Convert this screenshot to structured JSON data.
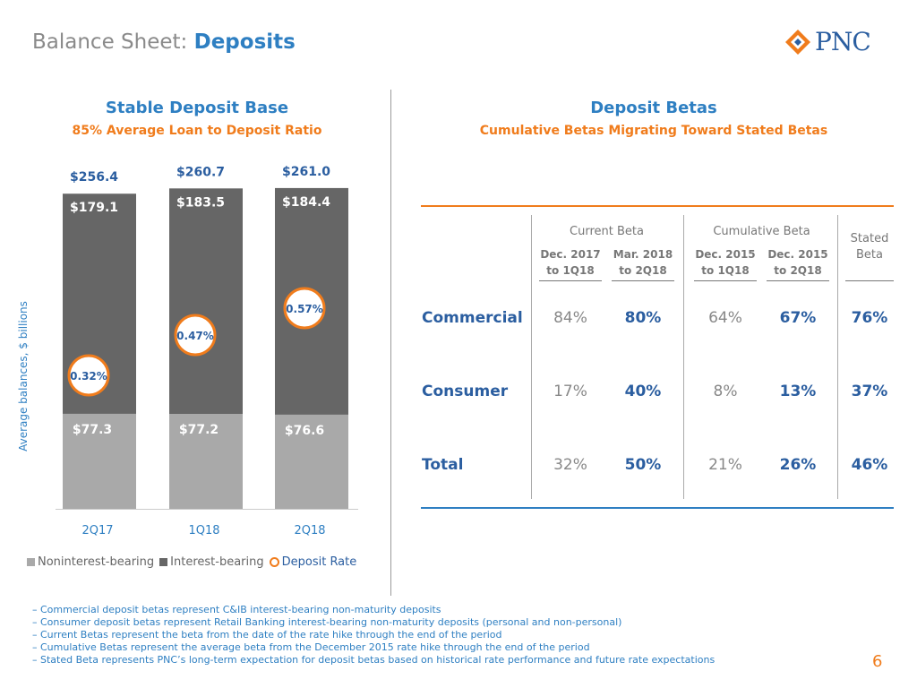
{
  "header": {
    "title_prefix": "Balance Sheet:",
    "title_main": "Deposits",
    "logo_text": "PNC"
  },
  "left_panel": {
    "title": "Stable Deposit Base",
    "subtitle": "85% Average Loan to Deposit Ratio"
  },
  "right_panel": {
    "title": "Deposit Betas",
    "subtitle": "Cumulative Betas Migrating Toward Stated Betas"
  },
  "chart_data": {
    "type": "bar",
    "stacked": true,
    "categories": [
      "2Q17",
      "1Q18",
      "2Q18"
    ],
    "series": [
      {
        "name": "Noninterest-bearing",
        "values": [
          77.3,
          77.2,
          76.6
        ],
        "labels": [
          "$77.3",
          "$77.2",
          "$76.6"
        ],
        "color": "#a9a9a9"
      },
      {
        "name": "Interest-bearing",
        "values": [
          179.1,
          183.5,
          184.4
        ],
        "labels": [
          "$179.1",
          "$183.5",
          "$184.4"
        ],
        "color": "#666666"
      }
    ],
    "totals": [
      256.4,
      260.7,
      261.0
    ],
    "total_labels": [
      "$256.4",
      "$260.7",
      "$261.0"
    ],
    "deposit_rate": {
      "name": "Deposit Rate",
      "values": [
        0.32,
        0.47,
        0.57
      ],
      "labels": [
        "0.32%",
        "0.47%",
        "0.57%"
      ],
      "color": "#f07c1c"
    },
    "ylabel": "Average balances, $ billions",
    "xlabel": "",
    "ylim": [
      0,
      270
    ],
    "legend": [
      "Noninterest-bearing",
      "Interest-bearing",
      "Deposit Rate"
    ],
    "legend_position": "bottom"
  },
  "betas_table": {
    "group_headers": [
      "Current Beta",
      "Cumulative Beta"
    ],
    "stated_header": [
      "Stated",
      "Beta"
    ],
    "sub_headers": [
      [
        "Dec. 2017",
        "to 1Q18"
      ],
      [
        "Mar. 2018",
        "to 2Q18"
      ],
      [
        "Dec. 2015",
        "to 1Q18"
      ],
      [
        "Dec. 2015",
        "to 2Q18"
      ]
    ],
    "rows": [
      {
        "label": "Commercial",
        "values": [
          "84%",
          "80%",
          "64%",
          "67%",
          "76%"
        ]
      },
      {
        "label": "Consumer",
        "values": [
          "17%",
          "40%",
          "8%",
          "13%",
          "37%"
        ]
      },
      {
        "label": "Total",
        "values": [
          "32%",
          "50%",
          "21%",
          "26%",
          "46%"
        ]
      }
    ]
  },
  "footnotes": [
    "– Commercial deposit betas represent C&IB interest-bearing non-maturity deposits",
    "– Consumer deposit betas represent Retail Banking interest-bearing non-maturity deposits (personal and non-personal)",
    "– Current Betas represent the beta from the date of the rate hike through the end of the period",
    "– Cumulative Betas represent the average beta from the December 2015 rate hike through the end of the period",
    "– Stated Beta represents PNC’s long-term expectation for deposit betas based on historical rate performance and future rate expectations"
  ],
  "page_number": "6",
  "colors": {
    "accent_blue": "#2e7fc2",
    "accent_orange": "#f07c1c",
    "dark_blue": "#2b5ea0"
  }
}
